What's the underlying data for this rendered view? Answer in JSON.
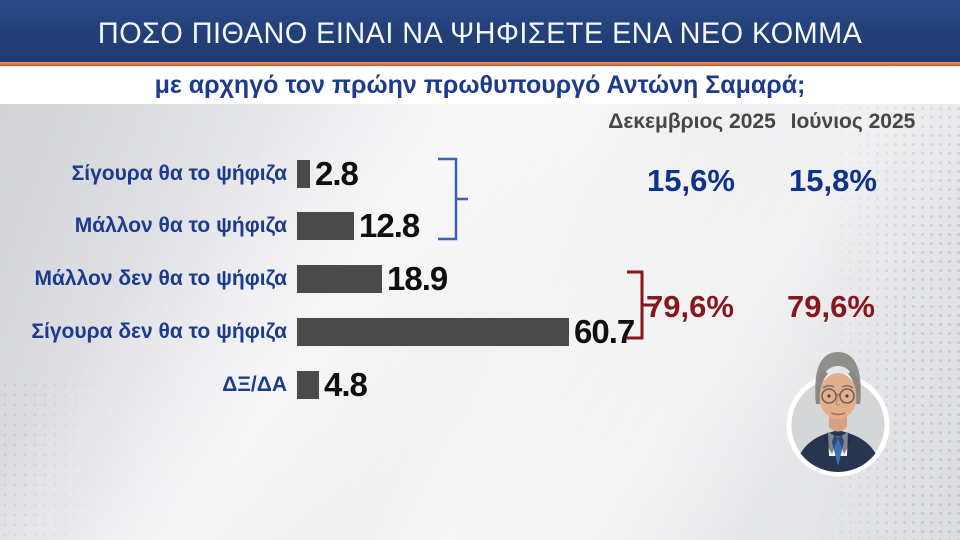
{
  "header": {
    "title": "ΠΟΣΟ ΠΙΘΑΝΟ ΕΙΝΑΙ ΝΑ ΨΗΦΙΣΕΤΕ ΕΝΑ ΝΕΟ ΚΟΜΜΑ",
    "subtitle": "με αρχηγό τον πρώην πρωθυπουργό Αντώνη Σαμαρά;"
  },
  "summary": {
    "columns": [
      "Δεκεμβριος 2025",
      "Ιούνιος 2025"
    ],
    "positive": {
      "dec": "15,6%",
      "jun": "15,8%"
    },
    "negative": {
      "dec": "79,6%",
      "jun": "79,6%"
    }
  },
  "chart_data": {
    "type": "bar",
    "orientation": "horizontal",
    "categories": [
      "Σίγουρα θα το ψήφιζα",
      "Μάλλον θα το ψήφιζα",
      "Μάλλον δεν θα το ψήφιζα",
      "Σίγουρα δεν θα το ψήφιζα",
      "ΔΞ/ΔΑ"
    ],
    "values": [
      2.8,
      12.8,
      18.9,
      60.7,
      4.8
    ],
    "value_labels": [
      "2.8",
      "12.8",
      "18.9",
      "60.7",
      "4.8"
    ],
    "xlim": [
      0,
      65
    ],
    "grid": false,
    "legend": "none",
    "bar_color": "#4a4a4a",
    "groups": [
      {
        "rows": [
          0,
          1
        ],
        "dec": "15,6%",
        "jun": "15,8%",
        "color": "#10328a"
      },
      {
        "rows": [
          2,
          3
        ],
        "dec": "79,6%",
        "jun": "79,6%",
        "color": "#8a151c"
      }
    ]
  },
  "icons": {
    "portrait": "samaras-portrait-photo",
    "bracket_positive": "blue-brace",
    "bracket_negative": "red-brace"
  },
  "colors": {
    "title_bg": "#24417b",
    "accent_orange": "#d96f3c",
    "label_blue": "#1c3a8e",
    "bar_gray": "#4a4a4a",
    "positive_blue": "#10328a",
    "negative_red": "#8a151c",
    "header_gray": "#464646"
  }
}
